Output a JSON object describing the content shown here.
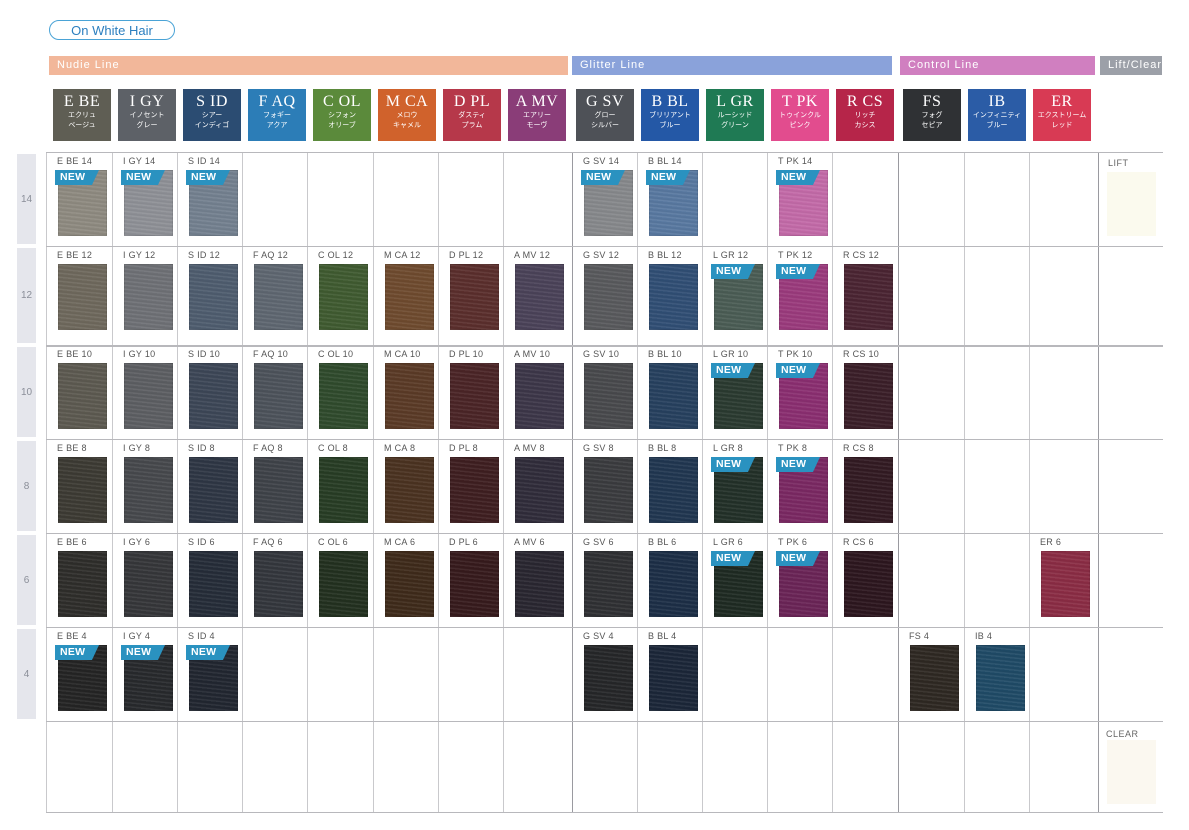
{
  "tag": "On White Hair",
  "sections": [
    {
      "label": "Nudie Line",
      "color": "#f2b79a"
    },
    {
      "label": "Glitter Line",
      "color": "#8aa2da"
    },
    {
      "label": "Control Line",
      "color": "#d07fc0"
    },
    {
      "label": "Lift/Clear",
      "color": "#9ca0a8"
    }
  ],
  "columns": [
    {
      "code": "E BE",
      "jp1": "エクリュ",
      "jp2": "ベージュ",
      "color": "#5f5e54"
    },
    {
      "code": "I GY",
      "jp1": "イノセント",
      "jp2": "グレー",
      "color": "#5d6167"
    },
    {
      "code": "S ID",
      "jp1": "シアー",
      "jp2": "インディゴ",
      "color": "#2b4c72"
    },
    {
      "code": "F AQ",
      "jp1": "フォギー",
      "jp2": "アクア",
      "color": "#2c7db7"
    },
    {
      "code": "C OL",
      "jp1": "シフォン",
      "jp2": "オリーブ",
      "color": "#5b8a3b"
    },
    {
      "code": "M CA",
      "jp1": "メロウ",
      "jp2": "キャメル",
      "color": "#d0622c"
    },
    {
      "code": "D PL",
      "jp1": "ダスティ",
      "jp2": "プラム",
      "color": "#b6384a"
    },
    {
      "code": "A MV",
      "jp1": "エアリー",
      "jp2": "モーヴ",
      "color": "#8a3d78"
    },
    {
      "code": "G SV",
      "jp1": "グロー",
      "jp2": "シルバー",
      "color": "#4e5157"
    },
    {
      "code": "B BL",
      "jp1": "ブリリアント",
      "jp2": "ブルー",
      "color": "#2458a6"
    },
    {
      "code": "L GR",
      "jp1": "ルーシッド",
      "jp2": "グリーン",
      "color": "#1f7a54"
    },
    {
      "code": "T PK",
      "jp1": "トゥインクル",
      "jp2": "ピンク",
      "color": "#e24c8e"
    },
    {
      "code": "R CS",
      "jp1": "リッチ",
      "jp2": "カシス",
      "color": "#b62549"
    },
    {
      "code": "FS",
      "jp1": "フォグ",
      "jp2": "セピア",
      "color": "#2f3134"
    },
    {
      "code": "IB",
      "jp1": "インフィニティ",
      "jp2": "ブルー",
      "color": "#2b5ca6"
    },
    {
      "code": "ER",
      "jp1": "エクストリーム",
      "jp2": "レッド",
      "color": "#d83a54"
    }
  ],
  "levels": [
    "14",
    "12",
    "10",
    "8",
    "6",
    "4"
  ],
  "badge_text": "NEW",
  "lift_label": "LIFT",
  "clear_label": "CLEAR",
  "swatches": [
    {
      "label": "E BE 14",
      "col": 0,
      "row": 0,
      "color": "#8e8a80",
      "new": true
    },
    {
      "label": "I GY 14",
      "col": 1,
      "row": 0,
      "color": "#8e9096",
      "new": true
    },
    {
      "label": "S ID 14",
      "col": 2,
      "row": 0,
      "color": "#73808f",
      "new": true
    },
    {
      "label": "G SV 14",
      "col": 8,
      "row": 0,
      "color": "#86888b",
      "new": true
    },
    {
      "label": "B BL 14",
      "col": 9,
      "row": 0,
      "color": "#5878a0",
      "new": true
    },
    {
      "label": "T PK 14",
      "col": 11,
      "row": 0,
      "color": "#c36aa8",
      "new": true
    },
    {
      "label": "E BE 12",
      "col": 0,
      "row": 1,
      "color": "#6e685c",
      "new": false
    },
    {
      "label": "I GY 12",
      "col": 1,
      "row": 1,
      "color": "#6e7075",
      "new": false
    },
    {
      "label": "S ID 12",
      "col": 2,
      "row": 1,
      "color": "#4e5c6e",
      "new": false
    },
    {
      "label": "F AQ 12",
      "col": 3,
      "row": 1,
      "color": "#5e6670",
      "new": false
    },
    {
      "label": "C OL 12",
      "col": 4,
      "row": 1,
      "color": "#3f5a30",
      "new": false
    },
    {
      "label": "M CA 12",
      "col": 5,
      "row": 1,
      "color": "#6e4a2e",
      "new": false
    },
    {
      "label": "D PL 12",
      "col": 6,
      "row": 1,
      "color": "#5a2e2c",
      "new": false
    },
    {
      "label": "A MV 12",
      "col": 7,
      "row": 1,
      "color": "#4a4258",
      "new": false
    },
    {
      "label": "G SV 12",
      "col": 8,
      "row": 1,
      "color": "#58595c",
      "new": false
    },
    {
      "label": "B BL 12",
      "col": 9,
      "row": 1,
      "color": "#304e74",
      "new": false
    },
    {
      "label": "L GR 12",
      "col": 10,
      "row": 1,
      "color": "#4a5c54",
      "new": true
    },
    {
      "label": "T PK 12",
      "col": 11,
      "row": 1,
      "color": "#9a3a7c",
      "new": true
    },
    {
      "label": "R CS 12",
      "col": 12,
      "row": 1,
      "color": "#4a2432",
      "new": false
    },
    {
      "label": "E BE 10",
      "col": 0,
      "row": 2,
      "color": "#5c5950",
      "new": false
    },
    {
      "label": "I GY 10",
      "col": 1,
      "row": 2,
      "color": "#5c5e62",
      "new": false
    },
    {
      "label": "S ID 10",
      "col": 2,
      "row": 2,
      "color": "#3c4656",
      "new": false
    },
    {
      "label": "F AQ 10",
      "col": 3,
      "row": 2,
      "color": "#4c525a",
      "new": false
    },
    {
      "label": "C OL 10",
      "col": 4,
      "row": 2,
      "color": "#2f4a2c",
      "new": false
    },
    {
      "label": "M CA 10",
      "col": 5,
      "row": 2,
      "color": "#5a3a26",
      "new": false
    },
    {
      "label": "D PL 10",
      "col": 6,
      "row": 2,
      "color": "#4a2426",
      "new": false
    },
    {
      "label": "A MV 10",
      "col": 7,
      "row": 2,
      "color": "#3c3648",
      "new": false
    },
    {
      "label": "G SV 10",
      "col": 8,
      "row": 2,
      "color": "#48494c",
      "new": false
    },
    {
      "label": "B BL 10",
      "col": 9,
      "row": 2,
      "color": "#26405e",
      "new": false
    },
    {
      "label": "L GR 10",
      "col": 10,
      "row": 2,
      "color": "#2a3a30",
      "new": true
    },
    {
      "label": "T PK 10",
      "col": 11,
      "row": 2,
      "color": "#8a2e70",
      "new": true
    },
    {
      "label": "R CS 10",
      "col": 12,
      "row": 2,
      "color": "#3a1e28",
      "new": false
    },
    {
      "label": "E BE 8",
      "col": 0,
      "row": 3,
      "color": "#3c3a33",
      "new": false
    },
    {
      "label": "I GY 8",
      "col": 1,
      "row": 3,
      "color": "#46484c",
      "new": false
    },
    {
      "label": "S ID 8",
      "col": 2,
      "row": 3,
      "color": "#2e3644",
      "new": false
    },
    {
      "label": "F AQ 8",
      "col": 3,
      "row": 3,
      "color": "#3e4248",
      "new": false
    },
    {
      "label": "C OL 8",
      "col": 4,
      "row": 3,
      "color": "#273c24",
      "new": false
    },
    {
      "label": "M CA 8",
      "col": 5,
      "row": 3,
      "color": "#4a3220",
      "new": false
    },
    {
      "label": "D PL 8",
      "col": 6,
      "row": 3,
      "color": "#3e1e20",
      "new": false
    },
    {
      "label": "A MV 8",
      "col": 7,
      "row": 3,
      "color": "#302c3a",
      "new": false
    },
    {
      "label": "G SV 8",
      "col": 8,
      "row": 3,
      "color": "#3a3b3e",
      "new": false
    },
    {
      "label": "B BL 8",
      "col": 9,
      "row": 3,
      "color": "#203650",
      "new": false
    },
    {
      "label": "L GR 8",
      "col": 10,
      "row": 3,
      "color": "#223028",
      "new": true
    },
    {
      "label": "T PK 8",
      "col": 11,
      "row": 3,
      "color": "#7a2862",
      "new": true
    },
    {
      "label": "R CS 8",
      "col": 12,
      "row": 3,
      "color": "#321a22",
      "new": false
    },
    {
      "label": "E BE 6",
      "col": 0,
      "row": 4,
      "color": "#2e2d2a",
      "new": false
    },
    {
      "label": "I GY 6",
      "col": 1,
      "row": 4,
      "color": "#353639",
      "new": false
    },
    {
      "label": "S ID 6",
      "col": 2,
      "row": 4,
      "color": "#252c38",
      "new": false
    },
    {
      "label": "F AQ 6",
      "col": 3,
      "row": 4,
      "color": "#33363c",
      "new": false
    },
    {
      "label": "C OL 6",
      "col": 4,
      "row": 4,
      "color": "#22301f",
      "new": false
    },
    {
      "label": "M CA 6",
      "col": 5,
      "row": 4,
      "color": "#3e2a1a",
      "new": false
    },
    {
      "label": "D PL 6",
      "col": 6,
      "row": 4,
      "color": "#361a1c",
      "new": false
    },
    {
      "label": "A MV 6",
      "col": 7,
      "row": 4,
      "color": "#292630",
      "new": false
    },
    {
      "label": "G SV 6",
      "col": 8,
      "row": 4,
      "color": "#2f3033",
      "new": false
    },
    {
      "label": "B BL 6",
      "col": 9,
      "row": 4,
      "color": "#1c2e46",
      "new": false
    },
    {
      "label": "L GR 6",
      "col": 10,
      "row": 4,
      "color": "#1e2a22",
      "new": true
    },
    {
      "label": "T PK 6",
      "col": 11,
      "row": 4,
      "color": "#6a2456",
      "new": true
    },
    {
      "label": "R CS 6",
      "col": 12,
      "row": 4,
      "color": "#2c161e",
      "new": false
    },
    {
      "label": "ER 6",
      "col": 15,
      "row": 4,
      "color": "#8a2c44",
      "new": false
    },
    {
      "label": "E BE 4",
      "col": 0,
      "row": 5,
      "color": "#242424",
      "new": true
    },
    {
      "label": "I GY 4",
      "col": 1,
      "row": 5,
      "color": "#27292c",
      "new": true
    },
    {
      "label": "S ID 4",
      "col": 2,
      "row": 5,
      "color": "#212630",
      "new": true
    },
    {
      "label": "G SV 4",
      "col": 8,
      "row": 5,
      "color": "#252628",
      "new": false
    },
    {
      "label": "B BL 4",
      "col": 9,
      "row": 5,
      "color": "#1b2638",
      "new": false
    },
    {
      "label": "FS 4",
      "col": 13,
      "row": 5,
      "color": "#2e2822",
      "new": false
    },
    {
      "label": "IB 4",
      "col": 14,
      "row": 5,
      "color": "#1f4a66",
      "new": false
    }
  ]
}
